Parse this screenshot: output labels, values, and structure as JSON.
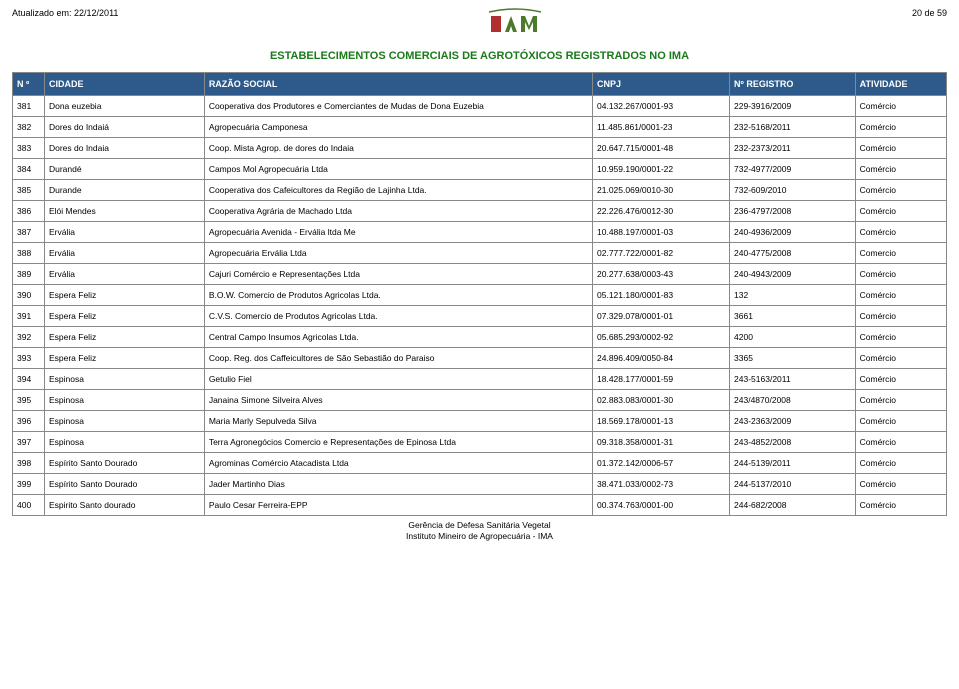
{
  "header": {
    "updated_label": "Atualizado em: 22/12/2011",
    "page_label": "20 de 59",
    "logo_text": "IMA",
    "logo_sub": "Instituto Mineiro de Agropecuária",
    "title": "ESTABELECIMENTOS COMERCIAIS DE AGROTÓXICOS REGISTRADOS NO IMA"
  },
  "table": {
    "columns": [
      "N º",
      "CIDADE",
      "RAZÃO SOCIAL",
      "CNPJ",
      "Nº REGISTRO",
      "ATIVIDADE"
    ],
    "header_bg": "#2d5a8a",
    "header_color": "#ffffff",
    "border_color": "#888888",
    "rows": [
      [
        "381",
        "Dona euzebia",
        "Cooperativa dos Produtores e Comerciantes de Mudas de Dona Euzebia",
        "04.132.267/0001-93",
        "229-3916/2009",
        "Comércio"
      ],
      [
        "382",
        "Dores do Indaiá",
        "Agropecuária Camponesa",
        "11.485.861/0001-23",
        "232-5168/2011",
        "Comércio"
      ],
      [
        "383",
        "Dores do Indaia",
        "Coop. Mista Agrop. de dores do Indaia",
        "20.647.715/0001-48",
        "232-2373/2011",
        "Comércio"
      ],
      [
        "384",
        "Durandé",
        "Campos Mol Agropecuária Ltda",
        "10.959.190/0001-22",
        "732-4977/2009",
        "Comércio"
      ],
      [
        "385",
        "Durande",
        "Cooperativa dos Cafeicultores da Região de Lajinha Ltda.",
        "21.025.069/0010-30",
        "732-609/2010",
        "Comércio"
      ],
      [
        "386",
        "Elói Mendes",
        "Cooperativa Agrária de Machado Ltda",
        "22.226.476/0012-30",
        "236-4797/2008",
        "Comércio"
      ],
      [
        "387",
        "Ervália",
        "Agropecuária Avenida - Ervália ltda Me",
        "10.488.197/0001-03",
        "240-4936/2009",
        "Comércio"
      ],
      [
        "388",
        "Ervália",
        "Agropecuária Ervália Ltda",
        "02.777.722/0001-82",
        "240-4775/2008",
        "Comercio"
      ],
      [
        "389",
        "Ervália",
        "Cajuri Comércio e Representações Ltda",
        "20.277.638/0003-43",
        "240-4943/2009",
        "Comércio"
      ],
      [
        "390",
        "Espera Feliz",
        "B.O.W. Comercio de Produtos Agricolas Ltda.",
        "05.121.180/0001-83",
        "132",
        "Comércio"
      ],
      [
        "391",
        "Espera Feliz",
        "C.V.S. Comercio de Produtos Agricolas Ltda.",
        "07.329.078/0001-01",
        "3661",
        "Comércio"
      ],
      [
        "392",
        "Espera Feliz",
        "Central Campo Insumos Agricolas Ltda.",
        "05.685.293/0002-92",
        "4200",
        "Comércio"
      ],
      [
        "393",
        "Espera Feliz",
        "Coop. Reg. dos Caffeicultores de São Sebastião do Paraiso",
        "24.896.409/0050-84",
        "3365",
        "Comércio"
      ],
      [
        "394",
        "Espinosa",
        "Getulio Fiel",
        "18.428.177/0001-59",
        "243-5163/2011",
        "Comércio"
      ],
      [
        "395",
        "Espinosa",
        "Janaina Simone Silveira Alves",
        "02.883.083/0001-30",
        "243/4870/2008",
        "Comércio"
      ],
      [
        "396",
        "Espinosa",
        "Maria Marly Sepulveda Silva",
        "18.569.178/0001-13",
        "243-2363/2009",
        "Comércio"
      ],
      [
        "397",
        "Espinosa",
        "Terra Agronegócios Comercio e Representações de Epinosa Ltda",
        "09.318.358/0001-31",
        "243-4852/2008",
        "Comércio"
      ],
      [
        "398",
        "Espírito Santo Dourado",
        "Agrominas Comércio Atacadista Ltda",
        "01.372.142/0006-57",
        "244-5139/2011",
        "Comércio"
      ],
      [
        "399",
        "Espírito Santo Dourado",
        "Jader Martinho Dias",
        "38.471.033/0002-73",
        "244-5137/2010",
        "Comércio"
      ],
      [
        "400",
        "Espirito Santo dourado",
        "Paulo Cesar Ferreira-EPP",
        "00.374.763/0001-00",
        "244-682/2008",
        "Comércio"
      ]
    ]
  },
  "footer": {
    "line1": "Gerência de Defesa Sanitária Vegetal",
    "line2": "Instituto Mineiro de Agropecuária - IMA"
  },
  "colors": {
    "title_color": "#1a7a1a",
    "logo_green": "#4a7a2a",
    "logo_red": "#b03030"
  }
}
